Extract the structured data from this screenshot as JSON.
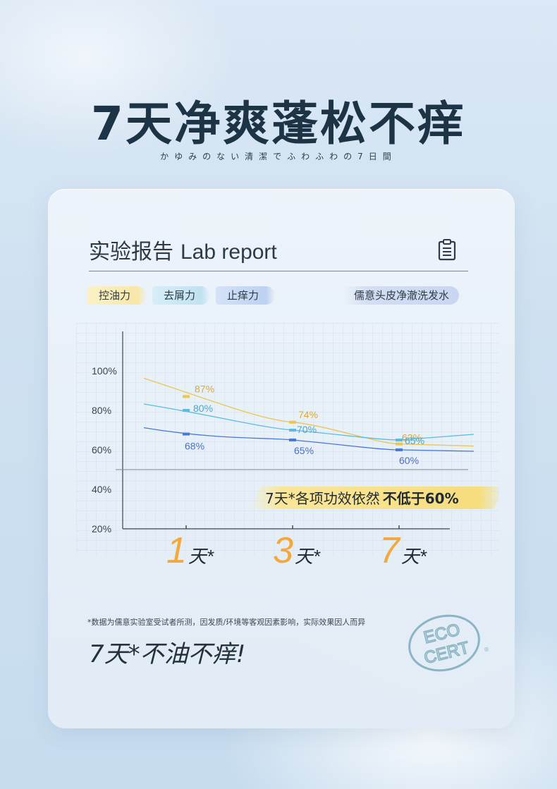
{
  "headline": "7天净爽蓬松不痒",
  "subline": "かゆみのない清潔でふわふわの7日間",
  "report": {
    "title_cn": "实验报告",
    "title_en": "Lab report",
    "icon": "clipboard-icon",
    "tags": [
      "控油力",
      "去屑力",
      "止痒力"
    ],
    "product": "儒意头皮净澈洗发水"
  },
  "chart_data": {
    "type": "line",
    "x": [
      "1天*",
      "3天*",
      "7天*"
    ],
    "x_numbers": [
      "1",
      "3",
      "7"
    ],
    "x_unit": "天*",
    "y_ticks": [
      "100%",
      "80%",
      "60%",
      "40%",
      "20%"
    ],
    "ylim": [
      20,
      120
    ],
    "reference_line": 50,
    "series": [
      {
        "name": "控油力",
        "color": "#eac652",
        "label_color": "#d9a93a",
        "values": [
          87,
          74,
          63
        ],
        "labels": [
          "87%",
          "74%",
          "63%"
        ]
      },
      {
        "name": "去屑力",
        "color": "#5cbce0",
        "label_color": "#49a8cf",
        "values": [
          80,
          70,
          65
        ],
        "labels": [
          "80%",
          "70%",
          "65%"
        ]
      },
      {
        "name": "止痒力",
        "color": "#4a78d6",
        "label_color": "#4a6fc4",
        "values": [
          68,
          65,
          60
        ],
        "labels": [
          "68%",
          "65%",
          "60%"
        ]
      }
    ],
    "callout_regular": "7天*各项功效依然",
    "callout_bold": "不低于60%"
  },
  "footnote": "*数据为儒意实验室受试者所测，因发质/环境等客观因素影响，实际效果因人而异",
  "slogan": "7天*不油不痒!",
  "seal": {
    "line1": "ECO",
    "line2": "CERT",
    "mark": "®"
  },
  "colors": {
    "headline": "#1d3446",
    "accent_orange": "#f2a83a",
    "callout_bg": "#f7e38a"
  }
}
